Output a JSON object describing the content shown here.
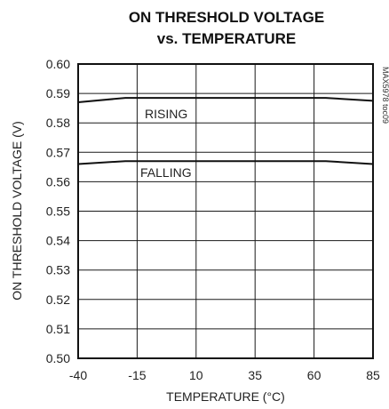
{
  "chart_data": {
    "type": "line",
    "title": [
      "ON THRESHOLD VOLTAGE",
      "vs. TEMPERATURE"
    ],
    "xlabel": "TEMPERATURE (°C)",
    "ylabel": "ON THRESHOLD VOLTAGE (V)",
    "xlim": [
      -40,
      85
    ],
    "ylim": [
      0.5,
      0.6
    ],
    "x_ticks": [
      -40,
      -15,
      10,
      35,
      60,
      85
    ],
    "y_ticks": [
      0.5,
      0.51,
      0.52,
      0.53,
      0.54,
      0.55,
      0.56,
      0.57,
      0.58,
      0.59,
      0.6
    ],
    "x_tick_labels": [
      "-40",
      "-15",
      "10",
      "35",
      "60",
      "85"
    ],
    "y_tick_labels": [
      "0.50",
      "0.51",
      "0.52",
      "0.53",
      "0.54",
      "0.55",
      "0.56",
      "0.57",
      "0.58",
      "0.59",
      "0.60"
    ],
    "grid": true,
    "series": [
      {
        "name": "RISING",
        "x": [
          -40,
          -20,
          0,
          20,
          40,
          65,
          85
        ],
        "y": [
          0.587,
          0.5885,
          0.5885,
          0.5885,
          0.5885,
          0.5885,
          0.5875
        ]
      },
      {
        "name": "FALLING",
        "x": [
          -40,
          -20,
          0,
          20,
          40,
          65,
          85
        ],
        "y": [
          0.566,
          0.567,
          0.567,
          0.567,
          0.567,
          0.567,
          0.566
        ]
      }
    ],
    "side_code": "MAX5978 toc09"
  }
}
